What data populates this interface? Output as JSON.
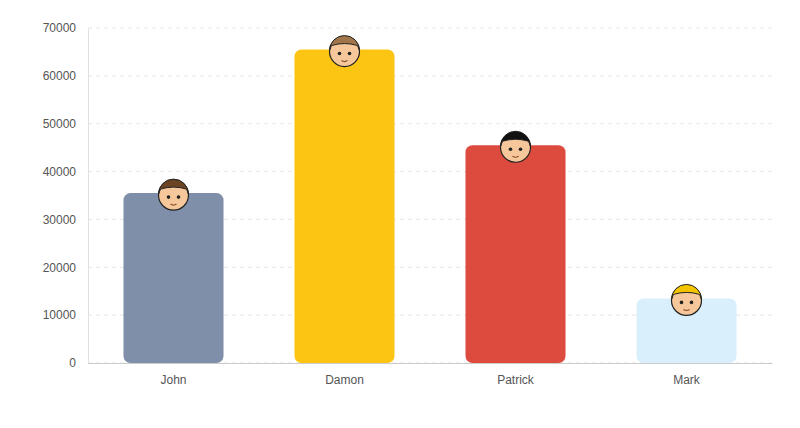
{
  "chart_data": {
    "type": "bar",
    "categories": [
      "John",
      "Damon",
      "Patrick",
      "Mark"
    ],
    "values": [
      35500,
      65500,
      45500,
      13500
    ],
    "colors": [
      "#7f8fa9",
      "#fdc513",
      "#dc4b3e",
      "#d9effc"
    ],
    "ylim": [
      0,
      70000
    ],
    "yticks": [
      0,
      10000,
      20000,
      30000,
      40000,
      50000,
      60000,
      70000
    ],
    "grid": true
  }
}
